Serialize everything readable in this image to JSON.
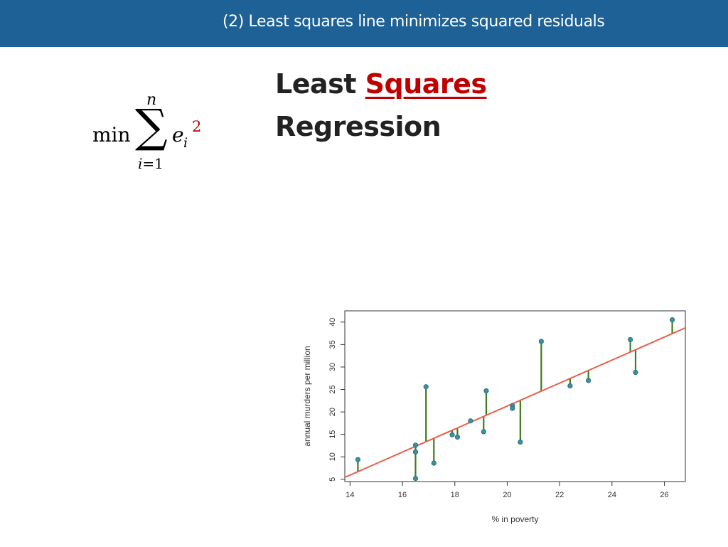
{
  "header": {
    "title": "(2) Least squares line minimizes squared residuals"
  },
  "formula": {
    "operator": "min",
    "sigma": "∑",
    "upper": "n",
    "lower_var": "i",
    "lower_eq": "=1",
    "term": "e",
    "subscript": "i",
    "exponent": "2"
  },
  "title": {
    "line1_pre": "Least",
    "line1_accent": "Squares",
    "line2": "Regression"
  },
  "colors": {
    "header": "#1e6196",
    "accent": "#c00000",
    "line": "#e8604c",
    "residual": "#3c7d1a",
    "point": "#3a8fa0"
  },
  "chart_data": {
    "type": "scatter",
    "title": "",
    "xlabel": "% in poverty",
    "ylabel": "annual murders per million",
    "xlim": [
      13.8,
      26.8
    ],
    "ylim": [
      4.5,
      42.5
    ],
    "xticks": [
      14,
      16,
      18,
      20,
      22,
      24,
      26
    ],
    "yticks": [
      5,
      10,
      15,
      20,
      25,
      30,
      35,
      40
    ],
    "grid": false,
    "regression_line": {
      "intercept": -29.9,
      "slope": 2.56
    },
    "points": [
      {
        "x": 14.3,
        "y": 9.4
      },
      {
        "x": 16.5,
        "y": 12.6
      },
      {
        "x": 16.5,
        "y": 11.1
      },
      {
        "x": 16.5,
        "y": 5.2
      },
      {
        "x": 16.9,
        "y": 25.6
      },
      {
        "x": 17.2,
        "y": 8.6
      },
      {
        "x": 17.9,
        "y": 14.9
      },
      {
        "x": 18.1,
        "y": 14.4
      },
      {
        "x": 18.6,
        "y": 18.0
      },
      {
        "x": 19.1,
        "y": 15.6
      },
      {
        "x": 19.2,
        "y": 24.7
      },
      {
        "x": 20.2,
        "y": 21.4
      },
      {
        "x": 20.2,
        "y": 20.8
      },
      {
        "x": 20.5,
        "y": 13.3
      },
      {
        "x": 21.3,
        "y": 35.7
      },
      {
        "x": 22.4,
        "y": 25.8
      },
      {
        "x": 23.1,
        "y": 27.0
      },
      {
        "x": 24.7,
        "y": 36.1
      },
      {
        "x": 24.9,
        "y": 28.8
      },
      {
        "x": 26.3,
        "y": 40.5
      }
    ]
  }
}
